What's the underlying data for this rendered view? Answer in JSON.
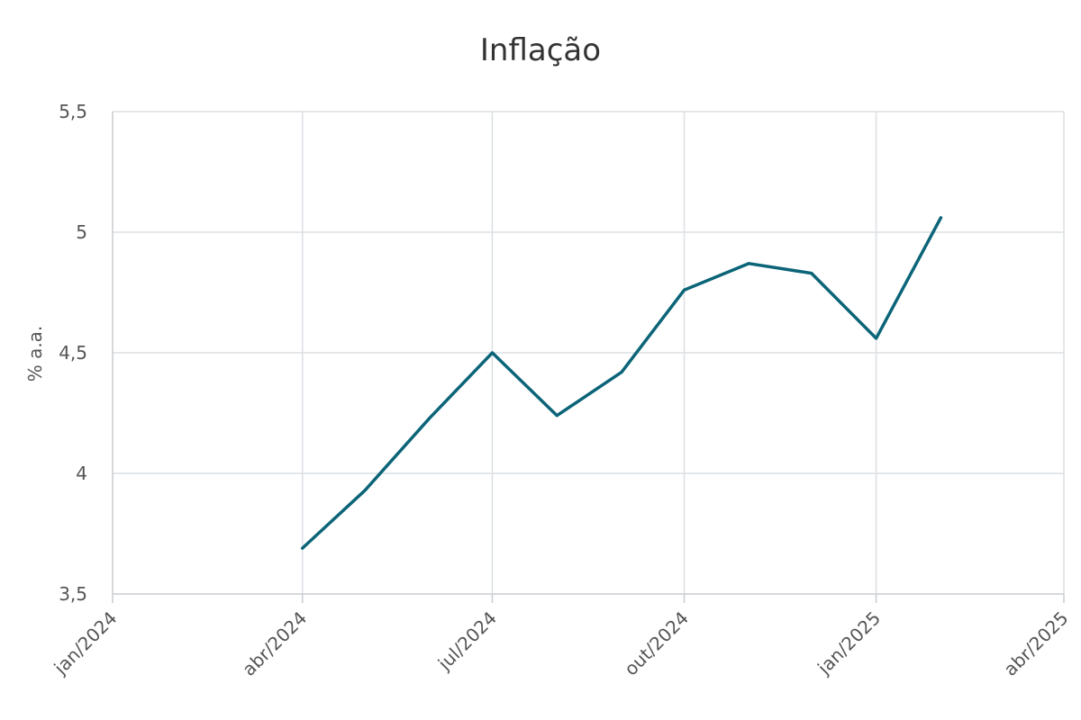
{
  "chart_data": {
    "type": "line",
    "title": "Inflação",
    "xlabel": "",
    "ylabel": "% a.a.",
    "x_ticks": [
      "2024-01-01",
      "2024-04-01",
      "2024-07-01",
      "2024-10-01",
      "2025-01-01",
      "2025-04-01"
    ],
    "x_tick_labels": [
      "jan/2024",
      "abr/2024",
      "jul/2024",
      "out/2024",
      "jan/2025",
      "abr/2025"
    ],
    "xlim": [
      "2024-01-01",
      "2025-04-01"
    ],
    "y_ticks": [
      3.5,
      4,
      4.5,
      5,
      5.5
    ],
    "y_tick_labels": [
      "3,5",
      "4",
      "4,5",
      "5",
      "5,5"
    ],
    "ylim": [
      3.5,
      5.5
    ],
    "grid": true,
    "legend": "none",
    "series": [
      {
        "color": "#0b6478",
        "x": [
          "2024-04-01",
          "2024-05-01",
          "2024-06-01",
          "2024-07-01",
          "2024-08-01",
          "2024-09-01",
          "2024-10-01",
          "2024-11-01",
          "2024-12-01",
          "2025-01-01",
          "2025-02-01"
        ],
        "values": [
          3.69,
          3.93,
          4.23,
          4.5,
          4.24,
          4.42,
          4.76,
          4.87,
          4.83,
          4.56,
          5.06
        ]
      }
    ]
  }
}
